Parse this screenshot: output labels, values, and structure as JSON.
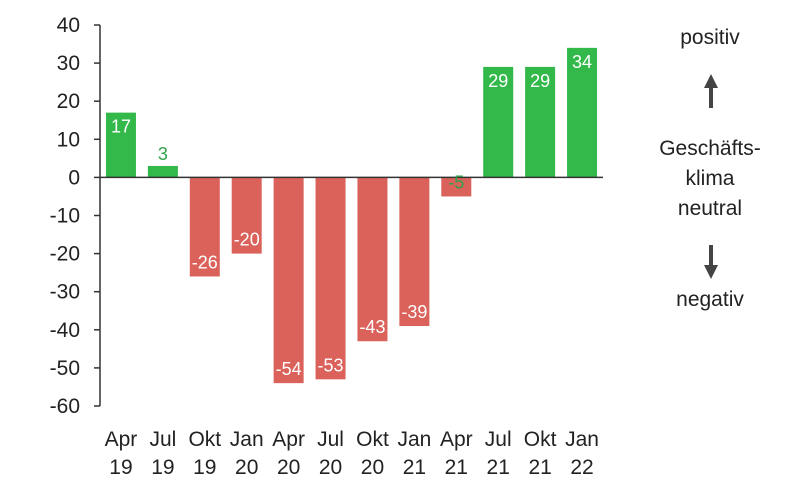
{
  "chart_data": {
    "type": "bar",
    "categories": [
      [
        "Apr",
        "19"
      ],
      [
        "Jul",
        "19"
      ],
      [
        "Okt",
        "19"
      ],
      [
        "Jan",
        "20"
      ],
      [
        "Apr",
        "20"
      ],
      [
        "Jul",
        "20"
      ],
      [
        "Okt",
        "20"
      ],
      [
        "Jan",
        "21"
      ],
      [
        "Apr",
        "21"
      ],
      [
        "Jul",
        "21"
      ],
      [
        "Okt",
        "21"
      ],
      [
        "Jan",
        "22"
      ]
    ],
    "values": [
      17,
      3,
      -26,
      -20,
      -54,
      -53,
      -43,
      -39,
      -5,
      29,
      29,
      34
    ],
    "data_labels": [
      "17",
      "3",
      "-26",
      "-20",
      "-54",
      "-53",
      "-43",
      "-39",
      "-5",
      "29",
      "29",
      "34"
    ],
    "ylim": [
      -60,
      40
    ],
    "yticks": [
      40,
      30,
      20,
      10,
      0,
      -10,
      -20,
      -30,
      -40,
      -50,
      -60
    ],
    "title": "",
    "xlabel": "",
    "ylabel": "",
    "grid": false,
    "colors": {
      "positive": "#33b84a",
      "negative": "#db625b",
      "label_on_bar": "#ffffff",
      "label_outside": "#33a04a"
    }
  },
  "side_scale": {
    "positive": "positiv",
    "middle_line1": "Geschäfts-",
    "middle_line2": "klima",
    "middle_line3": "neutral",
    "negative": "negativ",
    "up_arrow_icon": "arrow-up-icon",
    "down_arrow_icon": "arrow-down-icon"
  }
}
